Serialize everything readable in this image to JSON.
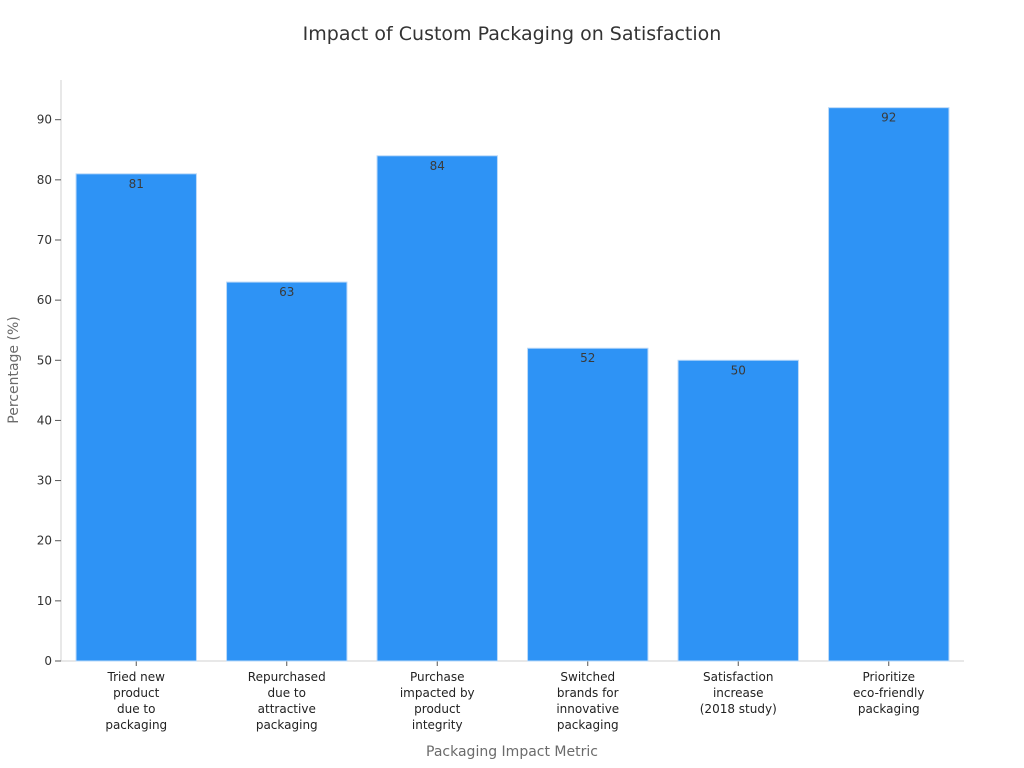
{
  "chart_data": {
    "type": "bar",
    "title": "Impact of Custom Packaging on Satisfaction",
    "xlabel": "Packaging Impact Metric",
    "ylabel": "Percentage (%)",
    "categories": [
      [
        "Tried new",
        "product",
        "due to",
        "packaging"
      ],
      [
        "Repurchased",
        "due to",
        "attractive",
        "packaging"
      ],
      [
        "Purchase",
        "impacted by",
        "product",
        "integrity"
      ],
      [
        "Switched",
        "brands for",
        "innovative",
        "packaging"
      ],
      [
        "Satisfaction",
        "increase",
        "(2018 study)"
      ],
      [
        "Prioritize",
        "eco-friendly",
        "packaging"
      ]
    ],
    "values": [
      81,
      63,
      84,
      52,
      50,
      92
    ],
    "data_labels": [
      "81",
      "63",
      "84",
      "52",
      "50",
      "92"
    ],
    "ylim": [
      0,
      96.6
    ],
    "yticks": [
      0,
      10,
      20,
      30,
      40,
      50,
      60,
      70,
      80,
      90
    ],
    "grid": false,
    "legend": "none",
    "bar_color": "#2e93f5",
    "bar_edge_color": "#b8d8f8"
  }
}
